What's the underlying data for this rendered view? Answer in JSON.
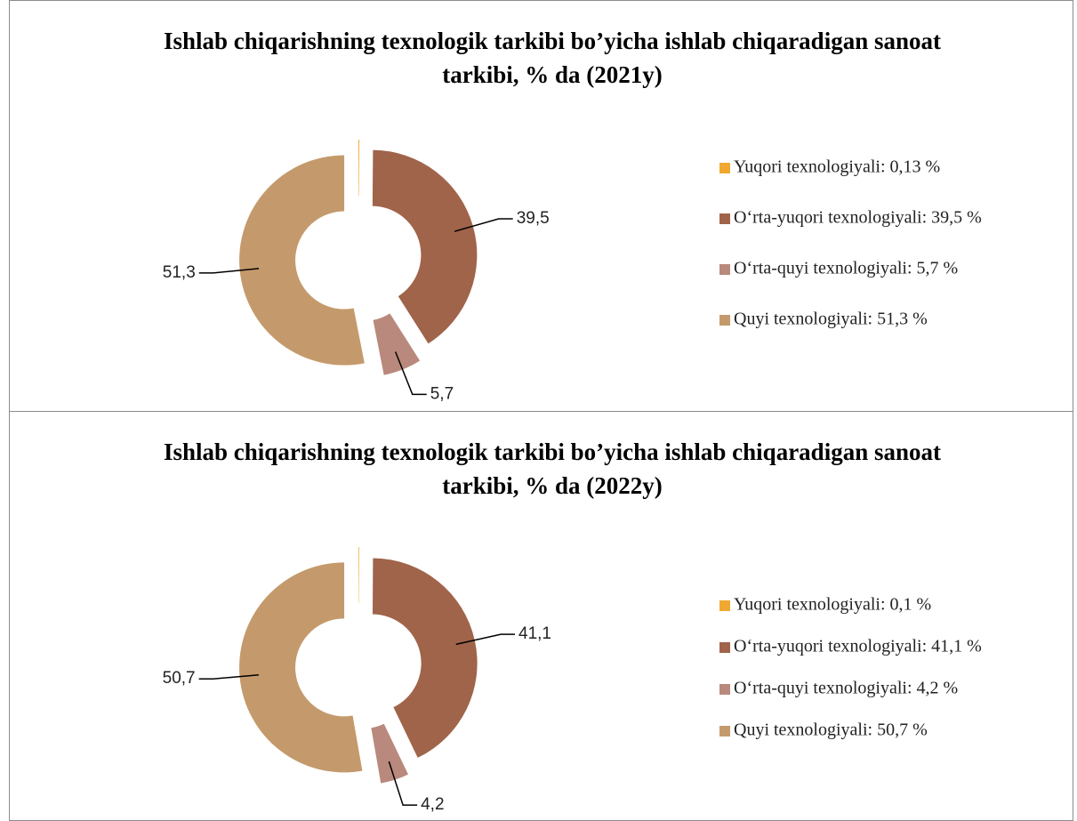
{
  "chart_data": [
    {
      "type": "donut",
      "title": "Ishlab chiqarishning texnologik tarkibi bo’yicha ishlab chiqaradigan sanoat tarkibi, % da (2021y)",
      "categories": [
        "Yuqori texnologiyali: 0,13 %",
        "O‘rta-yuqori texnologiyali: 39,5 %",
        "O‘rta-quyi texnologiyali: 5,7 %",
        "Quyi texnologiyali: 51,3 %"
      ],
      "values": [
        0.13,
        39.5,
        5.7,
        51.3
      ],
      "value_labels": [
        null,
        "39,5",
        "5,7",
        "51,3"
      ],
      "colors": [
        "#f0a830",
        "#a0644a",
        "#b8897c",
        "#c49a6c"
      ],
      "legend": "right"
    },
    {
      "type": "donut",
      "title": "Ishlab chiqarishning texnologik tarkibi bo’yicha ishlab chiqaradigan sanoat tarkibi, % da (2022y)",
      "categories": [
        "Yuqori texnologiyali: 0,1 %",
        "O‘rta-yuqori texnologiyali: 41,1 %",
        "O‘rta-quyi texnologiyali: 4,2 %",
        "Quyi texnologiyali: 50,7 %"
      ],
      "values": [
        0.1,
        41.1,
        4.2,
        50.7
      ],
      "value_labels": [
        null,
        "41,1",
        "4,2",
        "50,7"
      ],
      "colors": [
        "#f0a830",
        "#a0644a",
        "#b8897c",
        "#c49a6c"
      ],
      "legend": "right"
    }
  ]
}
